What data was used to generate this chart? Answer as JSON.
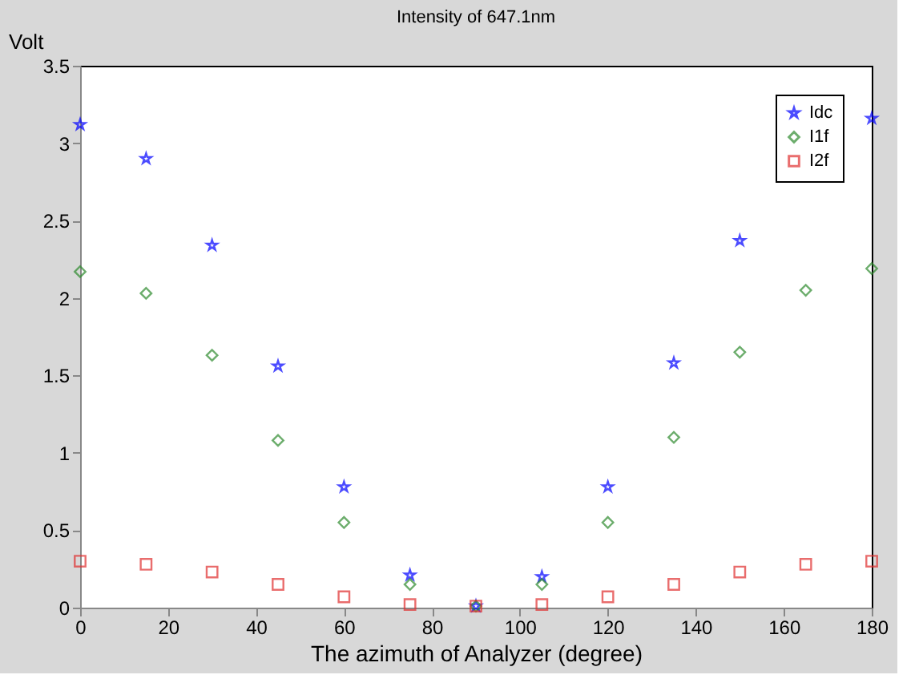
{
  "chart_data": {
    "type": "scatter",
    "title": "Intensity of 647.1nm",
    "xlabel": "The azimuth of Analyzer (degree)",
    "ylabel": "Volt",
    "x": [
      0,
      15,
      30,
      45,
      60,
      75,
      90,
      105,
      120,
      135,
      150,
      165,
      180
    ],
    "series": [
      {
        "name": "Idc",
        "color": "#0000ff",
        "marker": "star",
        "values": [
          3.12,
          2.9,
          2.34,
          1.56,
          0.78,
          0.21,
          0.01,
          0.2,
          0.78,
          1.58,
          2.37,
          null,
          3.16
        ]
      },
      {
        "name": "I1f",
        "color": "#2e8b2e",
        "marker": "diamond",
        "values": [
          2.17,
          2.03,
          1.63,
          1.08,
          0.55,
          0.15,
          0.01,
          0.15,
          0.55,
          1.1,
          1.65,
          2.05,
          2.19
        ]
      },
      {
        "name": "I2f",
        "color": "#e03030",
        "marker": "square",
        "values": [
          0.3,
          0.28,
          0.23,
          0.15,
          0.07,
          0.02,
          0.01,
          0.02,
          0.07,
          0.15,
          0.23,
          0.28,
          0.3
        ]
      }
    ],
    "xlim": [
      0,
      180
    ],
    "xticks": [
      0,
      20,
      40,
      60,
      80,
      100,
      120,
      140,
      160,
      180
    ],
    "ylim": [
      0,
      3.5
    ],
    "yticks": [
      0,
      0.5,
      1,
      1.5,
      2,
      2.5,
      3,
      3.5
    ],
    "grid": false,
    "legend": "top right"
  }
}
